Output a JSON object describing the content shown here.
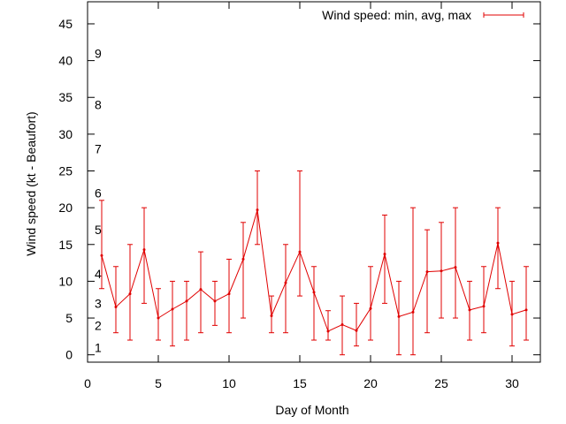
{
  "chart_data": {
    "type": "line",
    "title": "",
    "xlabel": "Day of Month",
    "ylabel": "Wind speed (kt - Beaufort)",
    "xlim": [
      0,
      32
    ],
    "ylim": [
      -1,
      48
    ],
    "x_ticks": [
      0,
      5,
      10,
      15,
      20,
      25,
      30
    ],
    "y_ticks": [
      0,
      5,
      10,
      15,
      20,
      25,
      30,
      35,
      40,
      45
    ],
    "grid": false,
    "legend_position": "top-right",
    "series_color": "#e00000",
    "series": [
      {
        "name": "Wind speed: min, avg, max",
        "x": [
          1,
          2,
          3,
          4,
          5,
          6,
          7,
          8,
          9,
          10,
          11,
          12,
          13,
          14,
          15,
          16,
          17,
          18,
          19,
          20,
          21,
          22,
          23,
          24,
          25,
          26,
          27,
          28,
          29,
          30,
          31
        ],
        "avg": [
          13.5,
          6.5,
          8.3,
          14.3,
          5,
          6.2,
          7.3,
          8.9,
          7.3,
          8.3,
          13,
          19.7,
          5.3,
          9.8,
          14,
          8.5,
          3.2,
          4.1,
          3.3,
          6.3,
          13.7,
          5.2,
          5.8,
          11.3,
          11.4,
          11.9,
          6.1,
          6.6,
          15.2,
          5.5,
          6.1
        ],
        "min": [
          9,
          3,
          2,
          7,
          2,
          1.2,
          2,
          3,
          4,
          3,
          5,
          15,
          3,
          3,
          8,
          2,
          2,
          0,
          1.2,
          2,
          7,
          0,
          0,
          3,
          5,
          5,
          2,
          3,
          9,
          1.2,
          2
        ],
        "max": [
          21,
          12,
          15,
          20,
          9,
          10,
          10,
          14,
          10,
          13,
          18,
          25,
          8,
          15,
          25,
          12,
          6,
          8,
          7,
          12,
          19,
          10,
          20,
          17,
          18,
          20,
          10,
          12,
          20,
          10,
          12
        ]
      }
    ],
    "annotations": [
      {
        "text": "1",
        "y": 1
      },
      {
        "text": "2",
        "y": 4
      },
      {
        "text": "3",
        "y": 7
      },
      {
        "text": "4",
        "y": 11
      },
      {
        "text": "5",
        "y": 17
      },
      {
        "text": "6",
        "y": 22
      },
      {
        "text": "7",
        "y": 28
      },
      {
        "text": "8",
        "y": 34
      },
      {
        "text": "9",
        "y": 41
      }
    ]
  }
}
